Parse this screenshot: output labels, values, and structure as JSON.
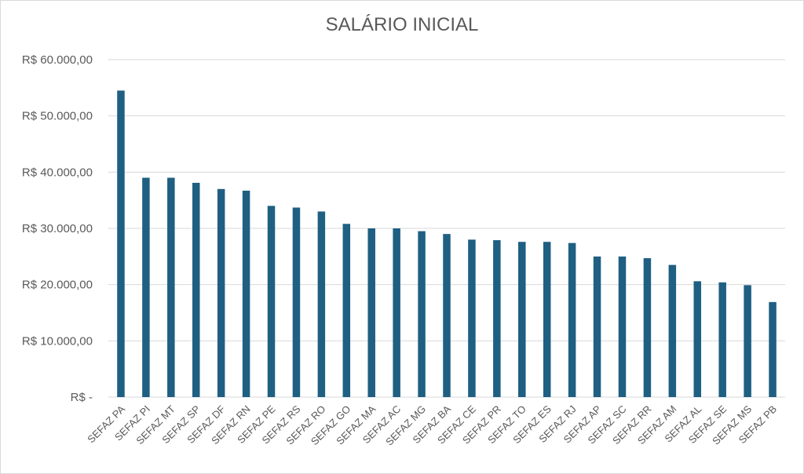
{
  "chart_data": {
    "type": "bar",
    "title": "SALÁRIO INICIAL",
    "xlabel": "",
    "ylabel": "",
    "categories": [
      "SEFAZ PA",
      "SEFAZ PI",
      "SEFAZ MT",
      "SEFAZ SP",
      "SEFAZ DF",
      "SEFAZ RN",
      "SEFAZ PE",
      "SEFAZ RS",
      "SEFAZ RO",
      "SEFAZ GO",
      "SEFAZ MA",
      "SEFAZ AC",
      "SEFAZ MG",
      "SEFAZ BA",
      "SEFAZ CE",
      "SEFAZ PR",
      "SEFAZ TO",
      "SEFAZ ES",
      "SEFAZ RJ",
      "SEFAZ AP",
      "SEFAZ SC",
      "SEFAZ RR",
      "SEFAZ AM",
      "SEFAZ AL",
      "SEFAZ SE",
      "SEFAZ MS",
      "SEFAZ PB"
    ],
    "values": [
      54500,
      39000,
      39000,
      38100,
      37000,
      36700,
      34000,
      33700,
      33000,
      30800,
      30000,
      30000,
      29500,
      29000,
      28000,
      27900,
      27600,
      27600,
      27400,
      25000,
      25000,
      24700,
      23500,
      20600,
      20400,
      19900,
      16900
    ],
    "ylim": [
      0,
      60000
    ],
    "yticks": [
      0,
      10000,
      20000,
      30000,
      40000,
      50000,
      60000
    ],
    "ytick_labels": [
      "R$ -",
      "R$ 10.000,00",
      "R$ 20.000,00",
      "R$ 30.000,00",
      "R$ 40.000,00",
      "R$ 50.000,00",
      "R$ 60.000,00"
    ],
    "grid": true,
    "legend": "none",
    "bar_color": "#1f5f82",
    "grid_color": "#d9d9d9"
  }
}
